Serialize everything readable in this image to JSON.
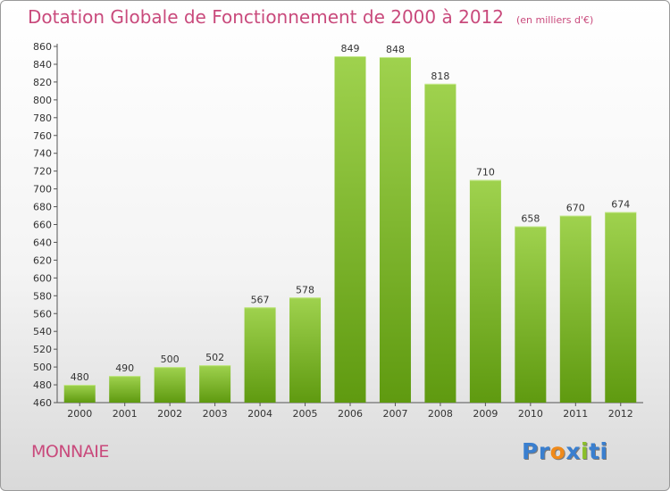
{
  "title": "Dotation Globale de Fonctionnement de 2000 à 2012",
  "unit_note": "(en milliers d'€)",
  "town": "MONNAIE",
  "logo": "Proxiti",
  "colors": {
    "title": "#c94a7c",
    "bar_light": "#9fd24e",
    "bar_dark": "#5f9a10",
    "logo_letters": [
      "#3a7fcf",
      "#3a7fcf",
      "#f08a1a",
      "#3a7fcf",
      "#8bbf2a",
      "#3a7fcf",
      "#3a7fcf"
    ]
  },
  "chart_data": {
    "type": "bar",
    "title": "Dotation Globale de Fonctionnement de 2000 à 2012",
    "categories": [
      "2000",
      "2001",
      "2002",
      "2003",
      "2004",
      "2005",
      "2006",
      "2007",
      "2008",
      "2009",
      "2010",
      "2011",
      "2012"
    ],
    "values": [
      480,
      490,
      500,
      502,
      567,
      578,
      849,
      848,
      818,
      710,
      658,
      670,
      674
    ],
    "ylim": [
      460,
      860
    ],
    "ytick_step": 20,
    "grid": false,
    "data_labels": true
  }
}
